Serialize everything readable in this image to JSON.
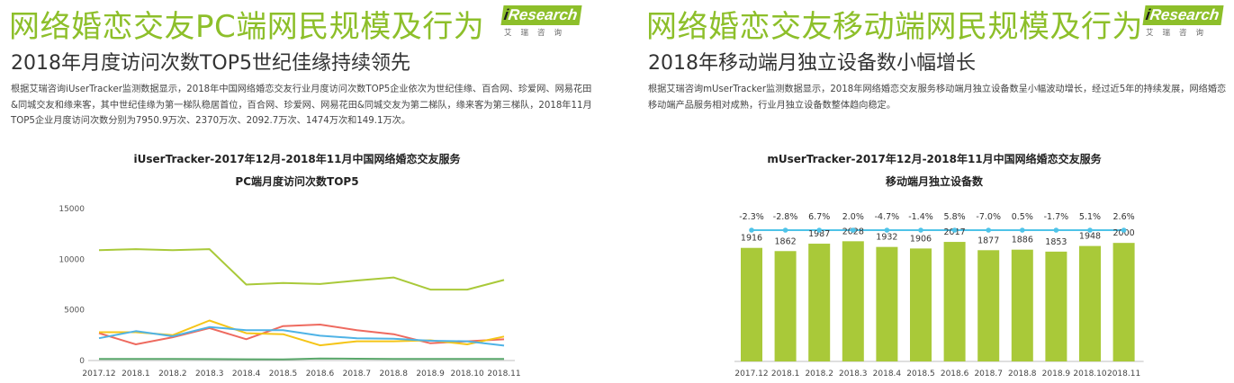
{
  "panels": {
    "left": {
      "title": "网络婚恋交友PC端网民规模及行为",
      "subtitle": "2018年月度访问次数TOP5世纪佳缘持续领先",
      "description": "根据艾瑞咨询iUserTracker监测数据显示，2018年中国网络婚恋交友行业月度访问次数TOP5企业依次为世纪佳缘、百合网、珍爱网、网易花田&同城交友和缘来客，其中世纪佳缘为第一梯队稳居首位，百合网、珍爱网、网易花田&同城交友为第二梯队，缘来客为第三梯队，2018年11月TOP5企业月度访问次数分别为7950.9万次、2370万次、2092.7万次、1474万次和149.1万次。",
      "chart_title_line1": "iUserTracker-2017年12月-2018年11月中国网络婚恋交友服务",
      "chart_title_line2": "PC端月度访问次数TOP5"
    },
    "right": {
      "title": "网络婚恋交友移动端网民规模及行为",
      "subtitle": "2018年移动端月独立设备数小幅增长",
      "description": "根据艾瑞咨询mUserTracker监测数据显示，2018年网络婚恋交友服务移动端月独立设备数呈小幅波动增长，经过近5年的持续发展，网络婚恋移动端产品服务相对成熟，行业月独立设备数整体趋向稳定。",
      "chart_title_line1": "mUserTracker-2017年12月-2018年11月中国网络婚恋交友服务",
      "chart_title_line2": "移动端月独立设备数"
    }
  },
  "logo": {
    "prefix": "i",
    "word": "Research",
    "sub": "艾瑞咨询"
  },
  "colors": {
    "accent": "#8dbf2a",
    "bar": "#a9c939",
    "growth_line": "#4fc3e8",
    "series": [
      "#a9c939",
      "#ee6a5f",
      "#f5c518",
      "#4fb3e6",
      "#5aa86b"
    ]
  },
  "chart_data": [
    {
      "type": "line",
      "categories": [
        "2017.12",
        "2018.1",
        "2018.2",
        "2018.3",
        "2018.4",
        "2018.5",
        "2018.6",
        "2018.7",
        "2018.8",
        "2018.9",
        "2018.10",
        "2018.11"
      ],
      "ylim": [
        0,
        15000
      ],
      "yticks": [
        0,
        5000,
        10000,
        15000
      ],
      "grid": false,
      "series": [
        {
          "values": [
            10900,
            11000,
            10900,
            11000,
            7500,
            7650,
            7550,
            7900,
            8200,
            7000,
            7000,
            7950.9
          ]
        },
        {
          "values": [
            2700,
            1600,
            2300,
            3200,
            2100,
            3400,
            3550,
            3000,
            2600,
            1700,
            1900,
            2092.7
          ]
        },
        {
          "values": [
            2800,
            2800,
            2500,
            3950,
            2700,
            2600,
            1500,
            1900,
            1900,
            2000,
            1600,
            2370
          ]
        },
        {
          "values": [
            2200,
            2900,
            2400,
            3300,
            3000,
            3000,
            2450,
            2200,
            2150,
            1950,
            1900,
            1474
          ]
        },
        {
          "values": [
            150,
            160,
            150,
            140,
            120,
            110,
            200,
            180,
            160,
            150,
            150,
            149.1
          ]
        }
      ]
    },
    {
      "type": "bar",
      "categories": [
        "2017.12",
        "2018.1",
        "2018.2",
        "2018.3",
        "2018.4",
        "2018.5",
        "2018.6",
        "2018.7",
        "2018.8",
        "2018.9",
        "2018.10",
        "2018.11"
      ],
      "values": [
        1916,
        1862,
        1987,
        2028,
        1932,
        1906,
        2017,
        1877,
        1886,
        1853,
        1948,
        2000
      ],
      "growth_labels": [
        "-2.3%",
        "-2.8%",
        "6.7%",
        "2.0%",
        "-4.7%",
        "-1.4%",
        "5.8%",
        "-7.0%",
        "0.5%",
        "-1.7%",
        "5.1%",
        "2.6%"
      ],
      "ylim": [
        0,
        2200
      ],
      "grid": false
    }
  ]
}
